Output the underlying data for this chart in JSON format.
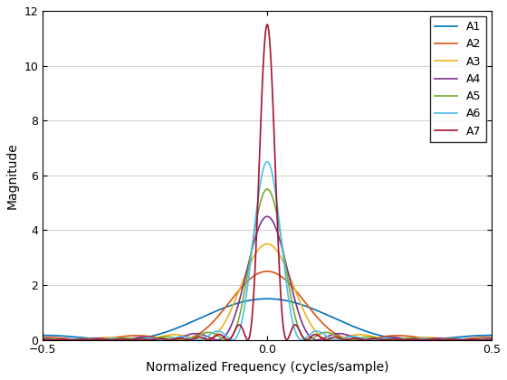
{
  "title": "",
  "xlabel": "Normalized Frequency (cycles/sample)",
  "ylabel": "Magnitude",
  "xlim": [
    -0.5,
    0.5
  ],
  "ylim": [
    0,
    12
  ],
  "yticks": [
    0,
    2,
    4,
    6,
    8,
    10,
    12
  ],
  "xticks": [
    -0.5,
    0,
    0.5
  ],
  "series": [
    {
      "label": "A1",
      "N": 3,
      "peak": 1.5,
      "color": "#0072BD"
    },
    {
      "label": "A2",
      "N": 5,
      "peak": 2.5,
      "color": "#D95319"
    },
    {
      "label": "A3",
      "N": 7,
      "peak": 3.5,
      "color": "#EDB120"
    },
    {
      "label": "A4",
      "N": 9,
      "peak": 4.5,
      "color": "#7E2F8E"
    },
    {
      "label": "A5",
      "N": 11,
      "peak": 5.5,
      "color": "#77AC30"
    },
    {
      "label": "A6",
      "N": 13,
      "peak": 6.5,
      "color": "#4DBEEE"
    },
    {
      "label": "A7",
      "N": 23,
      "peak": 11.5,
      "color": "#A2142F"
    }
  ],
  "background_color": "#ffffff",
  "grid_color": "#d3d3d3",
  "legend_loc": "upper right"
}
